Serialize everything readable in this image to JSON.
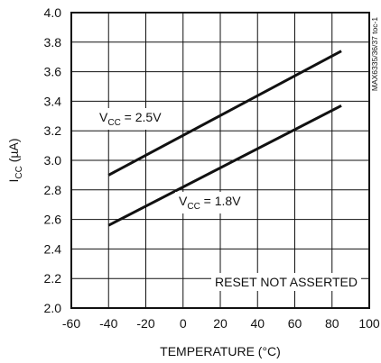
{
  "chart_data": {
    "type": "line",
    "title": "",
    "xlabel": "TEMPERATURE (°C)",
    "ylabel": {
      "main": "I",
      "sub": "CC",
      "unit": " (µA)"
    },
    "xlim": [
      -60,
      100
    ],
    "ylim": [
      2.0,
      4.0
    ],
    "x_ticks": [
      -60,
      -40,
      -20,
      0,
      20,
      40,
      60,
      80,
      100
    ],
    "y_ticks": [
      2.0,
      2.2,
      2.4,
      2.6,
      2.8,
      3.0,
      3.2,
      3.4,
      3.6,
      3.8,
      4.0
    ],
    "x_tick_labels": [
      "-60",
      "-40",
      "-20",
      "0",
      "20",
      "40",
      "60",
      "80",
      "100"
    ],
    "y_tick_labels": [
      "2.0",
      "2.2",
      "2.4",
      "2.6",
      "2.8",
      "3.0",
      "3.2",
      "3.4",
      "3.6",
      "3.8",
      "4.0"
    ],
    "grid": true,
    "series": [
      {
        "name": "VCC = 2.5V",
        "label": {
          "pre": "V",
          "sub": "CC",
          "post": " = 2.5V"
        },
        "x": [
          -40,
          85
        ],
        "y": [
          2.9,
          3.74
        ]
      },
      {
        "name": "VCC = 1.8V",
        "label": {
          "pre": "V",
          "sub": "CC",
          "post": " = 1.8V"
        },
        "x": [
          -40,
          85
        ],
        "y": [
          2.56,
          3.37
        ]
      }
    ],
    "annotations": {
      "condition": "RESET NOT ASSERTED",
      "side_code": "MAX6335/36/37 toc-1"
    },
    "colors": {
      "line": "#111111",
      "grid": "#111111",
      "background": "#ffffff"
    }
  }
}
